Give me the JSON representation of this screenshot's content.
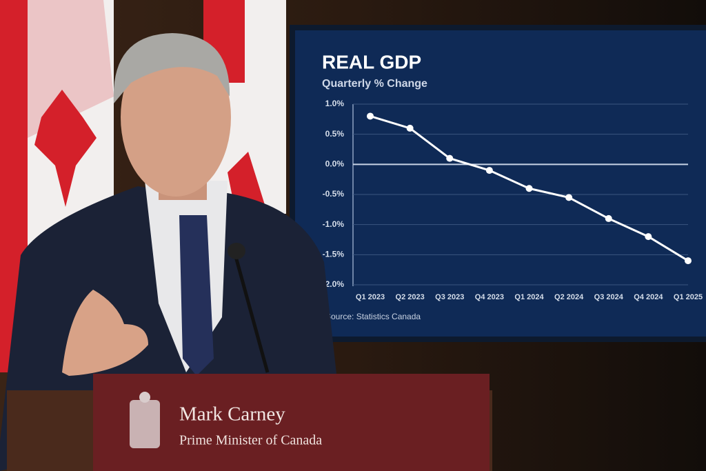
{
  "chart_data": {
    "type": "line",
    "title": "REAL GDP",
    "subtitle": "Quarterly % Change",
    "categories": [
      "Q1 2023",
      "Q2 2023",
      "Q3 2023",
      "Q4 2023",
      "Q1 2024",
      "Q2 2024",
      "Q3 2024",
      "Q4 2024",
      "Q1 2025"
    ],
    "series": [
      {
        "name": "Real GDP",
        "color": "#ffffff",
        "values": [
          0.8,
          0.6,
          0.1,
          -0.1,
          -0.4,
          -0.55,
          -0.9,
          -1.2,
          -1.6
        ]
      }
    ],
    "ylim": [
      -2,
      1
    ],
    "yticks": [
      {
        "value": 1,
        "label": "1.0%"
      },
      {
        "value": 0.5,
        "label": "0.5%"
      },
      {
        "value": 0,
        "label": "0.0%"
      },
      {
        "value": -0.5,
        "label": "-0.5%"
      },
      {
        "value": -1,
        "label": "-1.0%"
      },
      {
        "value": -1.5,
        "label": "-1.5%"
      },
      {
        "value": -2,
        "label": "-2.0%"
      }
    ],
    "grid": true,
    "source": "Source: Statistics Canada"
  },
  "podium": {
    "name": "Mark Carney",
    "title": "Prime Minister of Canada"
  }
}
